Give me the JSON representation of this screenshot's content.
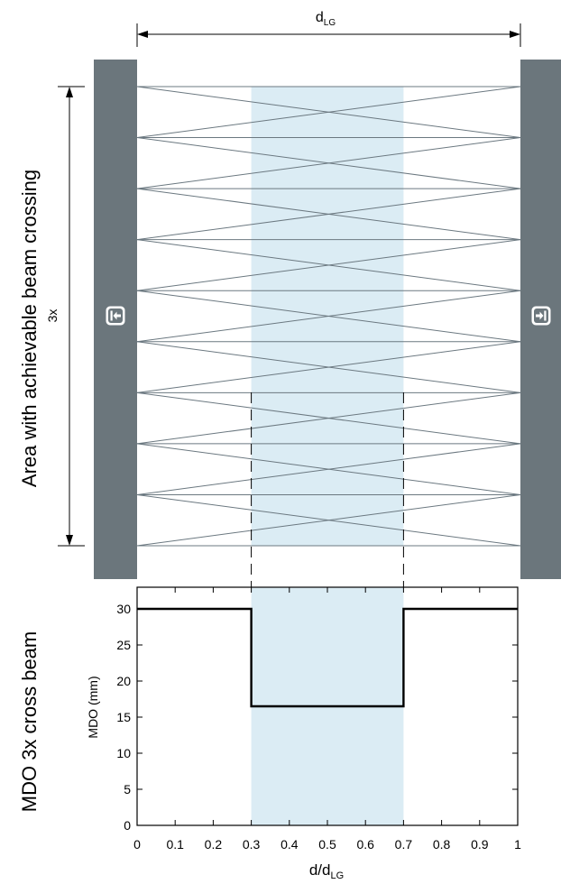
{
  "colors": {
    "receiver_bar": "#6b767c",
    "highlight": "#dbecf4",
    "beam_line": "#6b7880",
    "axis": "#000000"
  },
  "dimension": {
    "top_main": "d",
    "top_sub": "LG",
    "left_label": "3x"
  },
  "labels": {
    "upper_side": "Area with achievable beam crossing",
    "lower_side": "MDO 3x cross beam",
    "y_axis": "MDO (mm)",
    "x_axis_main": "d/d",
    "x_axis_sub": "LG"
  },
  "icons": {
    "left": "arrow-into-bar-left-icon",
    "right": "arrow-into-bar-right-icon"
  },
  "beam_diagram": {
    "emitter_count": 10,
    "shaded_range": [
      0.3,
      0.7
    ]
  },
  "chart_data": {
    "type": "line",
    "title": "",
    "xlabel": "d/dLG",
    "ylabel": "MDO (mm)",
    "xlim": [
      0,
      1
    ],
    "ylim": [
      0,
      33
    ],
    "x_ticks": [
      0,
      0.1,
      0.2,
      0.3,
      0.4,
      0.5,
      0.6,
      0.7,
      0.8,
      0.9,
      1
    ],
    "y_ticks": [
      0,
      5,
      10,
      15,
      20,
      25,
      30
    ],
    "x_tick_labels": [
      "0",
      "0.1",
      "0.2",
      "0.3",
      "0.4",
      "0.5",
      "0.6",
      "0.7",
      "0.8",
      "0.9",
      "1"
    ],
    "y_tick_labels": [
      "0",
      "5",
      "10",
      "15",
      "20",
      "25",
      "30"
    ],
    "highlight_range": [
      0.3,
      0.7
    ],
    "series": [
      {
        "x": [
          0,
          0.3,
          0.3,
          0.7,
          0.7,
          1
        ],
        "y": [
          30,
          30,
          16.5,
          16.5,
          30,
          30
        ]
      }
    ]
  }
}
